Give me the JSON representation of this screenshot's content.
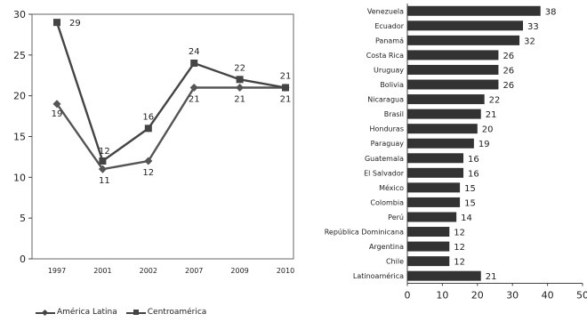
{
  "chart_data": [
    {
      "type": "line",
      "x": [
        "1997",
        "2001",
        "2002",
        "2007",
        "2009",
        "2010"
      ],
      "series": [
        {
          "name": "América Latina",
          "values": [
            19,
            11,
            12,
            21,
            21,
            21
          ],
          "marker": "diamond",
          "color": "#555555"
        },
        {
          "name": "Centroamérica",
          "values": [
            29,
            12,
            16,
            24,
            22,
            21
          ],
          "marker": "square",
          "color": "#444444"
        }
      ],
      "ylim": [
        0,
        30
      ],
      "yticks": [
        0,
        5,
        10,
        15,
        20,
        25,
        30
      ],
      "legend": "bottom",
      "grid": false
    },
    {
      "type": "bar",
      "orientation": "horizontal",
      "categories": [
        "Venezuela",
        "Ecuador",
        "Panamá",
        "Costa Rica",
        "Uruguay",
        "Bolivia",
        "Nicaragua",
        "Brasil",
        "Honduras",
        "Paraguay",
        "Guatemala",
        "El Salvador",
        "México",
        "Colombia",
        "Perú",
        "República Dominicana",
        "Argentina",
        "Chile",
        "Latinoamérica"
      ],
      "values": [
        38,
        33,
        32,
        26,
        26,
        26,
        22,
        21,
        20,
        19,
        16,
        16,
        15,
        15,
        14,
        12,
        12,
        12,
        21
      ],
      "xlim": [
        0,
        50
      ],
      "xticks": [
        0,
        10,
        20,
        30,
        40,
        50
      ],
      "bar_color": "#333333",
      "grid": false
    }
  ]
}
